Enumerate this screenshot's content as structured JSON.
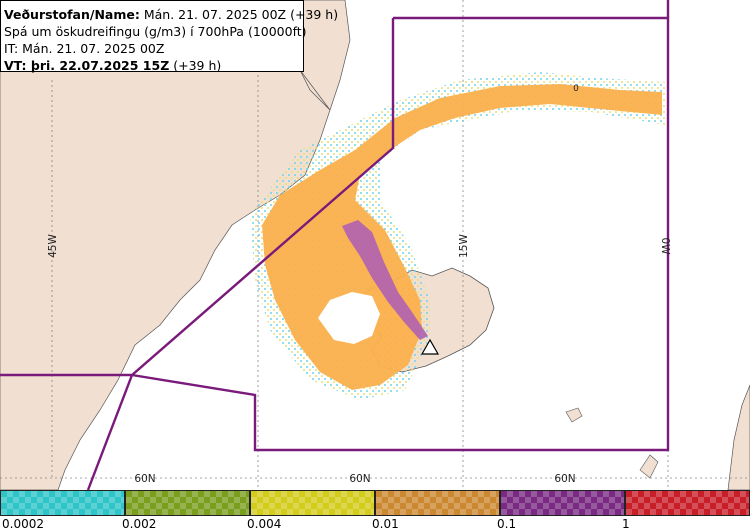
{
  "info": {
    "line1_label": "Veðurstofan/Name:",
    "line1_value": " Mán. 21. 07. 2025 00Z (+39 h)",
    "line2": "Spá um öskudreifingu (g/m3) í 700hPa (10000ft)",
    "line3": "IT: Mán. 21. 07. 2025 00Z",
    "line4_label": "VT: þri. 22.07.2025 15Z",
    "line4_value": " (+39 h)"
  },
  "grid_labels": {
    "lon_45w": "45W",
    "lon_15w": "15W",
    "lon_0w": "0W",
    "lat_a": "60N",
    "lat_b": "60N",
    "lat_c": "60N",
    "contour_label": "0"
  },
  "legend": {
    "colors": [
      "#2ec4c8",
      "#7a9e1e",
      "#d4cc1c",
      "#cc8830",
      "#7a2a82",
      "#c81e28"
    ],
    "ticks": [
      "0.0002",
      "0.002",
      "0.004",
      "0.01",
      "0.1",
      "1"
    ]
  },
  "colors": {
    "land": "#f1dfd2",
    "sea": "#ffffff",
    "boundary": "#7a1a7a",
    "ash_orange": "#fbb04c",
    "ash_purple": "#b060b0"
  }
}
